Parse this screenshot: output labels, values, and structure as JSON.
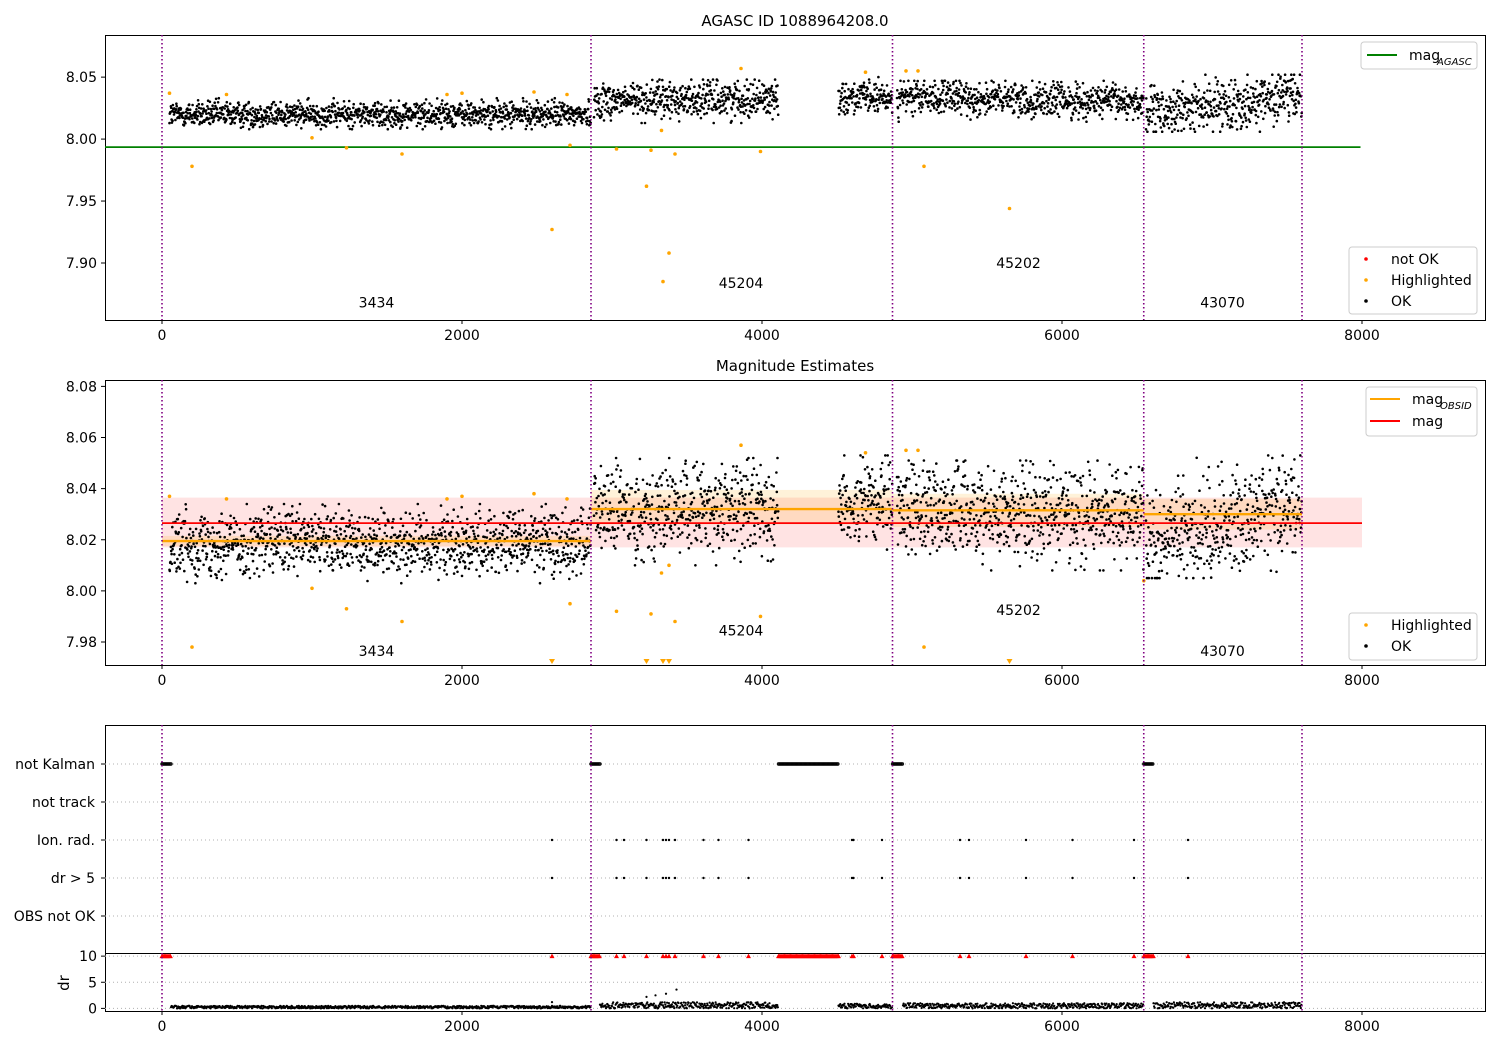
{
  "chart_data": [
    {
      "type": "scatter",
      "title": "AGASC ID 1088964208.0",
      "xlabel": "",
      "ylabel": "",
      "xlim": [
        -380,
        8820
      ],
      "ylim": [
        7.854,
        8.084
      ],
      "xticks": [
        0,
        2000,
        4000,
        6000,
        8000
      ],
      "yticks": [
        7.9,
        7.95,
        8.0,
        8.05
      ],
      "ytick_labels": [
        "7.90",
        "7.95",
        "8.00",
        "8.05"
      ],
      "grid": false,
      "obsid_boundaries": [
        0,
        2860,
        4870,
        6545,
        7600
      ],
      "obsid_labels": [
        {
          "text": "3434",
          "x": 1430,
          "y": 7.864
        },
        {
          "text": "45204",
          "x": 3860,
          "y": 7.88
        },
        {
          "text": "45202",
          "x": 5710,
          "y": 7.896
        },
        {
          "text": "43070",
          "x": 7070,
          "y": 7.864
        }
      ],
      "ok_segments": [
        {
          "x0": 50,
          "x1": 2860,
          "ymin": 8.008,
          "ymax": 8.033,
          "trend": [
            8.02,
            8.02
          ]
        },
        {
          "x0": 2880,
          "x1": 4110,
          "ymin": 8.013,
          "ymax": 8.048,
          "trend": [
            8.031,
            8.033
          ]
        },
        {
          "x0": 4510,
          "x1": 4870,
          "ymin": 8.02,
          "ymax": 8.05,
          "trend": [
            8.034,
            8.033
          ]
        },
        {
          "x0": 4900,
          "x1": 6545,
          "ymin": 8.014,
          "ymax": 8.047,
          "trend": [
            8.034,
            8.03
          ]
        },
        {
          "x0": 6560,
          "x1": 7600,
          "ymin": 8.006,
          "ymax": 8.052,
          "trend": [
            8.02,
            8.036
          ]
        }
      ],
      "highlighted_points": [
        [
          50,
          8.037
        ],
        [
          200,
          7.978
        ],
        [
          430,
          8.036
        ],
        [
          1000,
          8.001
        ],
        [
          1230,
          7.993
        ],
        [
          1600,
          7.988
        ],
        [
          1900,
          8.036
        ],
        [
          2000,
          8.037
        ],
        [
          2480,
          8.038
        ],
        [
          2600,
          7.927
        ],
        [
          2700,
          8.036
        ],
        [
          2720,
          7.995
        ],
        [
          3030,
          7.992
        ],
        [
          3230,
          7.962
        ],
        [
          3260,
          7.991
        ],
        [
          3330,
          8.007
        ],
        [
          3340,
          7.885
        ],
        [
          3380,
          7.908
        ],
        [
          3420,
          7.988
        ],
        [
          3860,
          8.057
        ],
        [
          3990,
          7.99
        ],
        [
          4690,
          8.054
        ],
        [
          4960,
          8.055
        ],
        [
          5040,
          8.055
        ],
        [
          5080,
          7.978
        ],
        [
          5650,
          7.944
        ]
      ],
      "not_ok_points": [],
      "reference_lines": [
        {
          "name": "mag_AGASC",
          "value": 7.9935,
          "x0": -380,
          "x1": 7990,
          "color": "#008000"
        }
      ],
      "legend_top": [
        {
          "label_main": "mag",
          "label_sub": "AGASC",
          "color": "#008000",
          "kind": "line"
        }
      ],
      "legend_bottom": [
        {
          "label": "not OK",
          "color": "#ff0000",
          "kind": "dot"
        },
        {
          "label": "Highlighted",
          "color": "#ffa500",
          "kind": "dot"
        },
        {
          "label": "OK",
          "color": "#000000",
          "kind": "dot"
        }
      ],
      "legend_placement": [
        "upper right",
        "lower right"
      ]
    },
    {
      "type": "scatter",
      "title": "Magnitude Estimates",
      "xlabel": "",
      "ylabel": "",
      "xlim": [
        -380,
        8820
      ],
      "ylim": [
        7.971,
        8.0825
      ],
      "xticks": [
        0,
        2000,
        4000,
        6000,
        8000
      ],
      "yticks": [
        7.98,
        8.0,
        8.02,
        8.04,
        8.06,
        8.08
      ],
      "ytick_labels": [
        "7.98",
        "8.00",
        "8.02",
        "8.04",
        "8.06",
        "8.08"
      ],
      "grid": false,
      "obsid_boundaries": [
        0,
        2860,
        4870,
        6545,
        7600
      ],
      "obsid_labels": [
        {
          "text": "3434",
          "x": 1430,
          "y": 7.9745
        },
        {
          "text": "45204",
          "x": 3860,
          "y": 7.9825
        },
        {
          "text": "45202",
          "x": 5710,
          "y": 7.9905
        },
        {
          "text": "43070",
          "x": 7070,
          "y": 7.9745
        }
      ],
      "ok_segments": [
        {
          "x0": 50,
          "x1": 2860,
          "ymin": 8.003,
          "ymax": 8.034,
          "trend": [
            8.019,
            8.019
          ]
        },
        {
          "x0": 2880,
          "x1": 4110,
          "ymin": 8.01,
          "ymax": 8.052,
          "trend": [
            8.031,
            8.033
          ]
        },
        {
          "x0": 4510,
          "x1": 4870,
          "ymin": 8.013,
          "ymax": 8.053,
          "trend": [
            8.034,
            8.033
          ]
        },
        {
          "x0": 4900,
          "x1": 6545,
          "ymin": 8.008,
          "ymax": 8.051,
          "trend": [
            8.033,
            8.029
          ]
        },
        {
          "x0": 6560,
          "x1": 7600,
          "ymin": 8.005,
          "ymax": 8.053,
          "trend": [
            8.018,
            8.035
          ]
        }
      ],
      "highlighted_points": [
        [
          50,
          8.037
        ],
        [
          200,
          7.978
        ],
        [
          430,
          8.036
        ],
        [
          1000,
          8.001
        ],
        [
          1230,
          7.993
        ],
        [
          1600,
          7.988
        ],
        [
          1900,
          8.036
        ],
        [
          2000,
          8.037
        ],
        [
          2480,
          8.038
        ],
        [
          2700,
          8.036
        ],
        [
          2720,
          7.995
        ],
        [
          3030,
          7.992
        ],
        [
          3260,
          7.991
        ],
        [
          3330,
          8.007
        ],
        [
          3420,
          7.988
        ],
        [
          3380,
          8.01
        ],
        [
          3860,
          8.057
        ],
        [
          3990,
          7.99
        ],
        [
          4690,
          8.054
        ],
        [
          4960,
          8.055
        ],
        [
          5040,
          8.055
        ],
        [
          5080,
          7.978
        ],
        [
          6545,
          8.004
        ]
      ],
      "clipped_points_x": [
        2600,
        3230,
        3340,
        3380,
        5650
      ],
      "obsid_mags": [
        {
          "x0": 0,
          "x1": 2860,
          "value": 8.0195,
          "lo": 8.0175,
          "hi": 8.0215
        },
        {
          "x0": 2860,
          "x1": 4870,
          "value": 8.032,
          "lo": 8.026,
          "hi": 8.0395
        },
        {
          "x0": 4870,
          "x1": 6545,
          "value": 8.0315,
          "lo": 8.025,
          "hi": 8.038
        },
        {
          "x0": 6545,
          "x1": 7600,
          "value": 8.03,
          "lo": 8.024,
          "hi": 8.036
        }
      ],
      "mean_mag": {
        "value": 8.0265,
        "lo": 8.017,
        "hi": 8.0365,
        "x0": 0,
        "x1": 8000
      },
      "legend_top": [
        {
          "label_main": "mag",
          "label_sub": "OBSID",
          "color": "#ffa500",
          "kind": "line"
        },
        {
          "label_main": "mag",
          "label_sub": "",
          "color": "#ff0000",
          "kind": "line"
        }
      ],
      "legend_bottom": [
        {
          "label": "Highlighted",
          "color": "#ffa500",
          "kind": "dot"
        },
        {
          "label": "OK",
          "color": "#000000",
          "kind": "dot"
        }
      ],
      "legend_placement": [
        "upper right",
        "lower right"
      ]
    },
    {
      "type": "scatter",
      "title": "",
      "xlabel": "",
      "ylabel": "",
      "xlim": [
        -380,
        8820
      ],
      "xticks": [
        0,
        2000,
        4000,
        6000,
        8000
      ],
      "grid": true,
      "obsid_boundaries": [
        0,
        2860,
        4870,
        6545,
        7600
      ],
      "flag_rows": [
        {
          "label": "not Kalman",
          "ranges": [
            [
              0,
              60
            ],
            [
              2860,
              2920
            ],
            [
              4110,
              4510
            ],
            [
              4870,
              4940
            ],
            [
              6545,
              6610
            ]
          ],
          "points": []
        },
        {
          "label": "not track",
          "ranges": [],
          "points": []
        },
        {
          "label": "Ion. rad.",
          "ranges": [],
          "points": [
            2600,
            3030,
            3080,
            3230,
            3340,
            3360,
            3380,
            3420,
            3610,
            3710,
            3910,
            4600,
            4610,
            4800,
            5320,
            5380,
            5760,
            6070,
            6480,
            6840
          ]
        },
        {
          "label": "dr > 5",
          "ranges": [],
          "points": [
            2600,
            3030,
            3080,
            3230,
            3340,
            3360,
            3380,
            3420,
            3610,
            3710,
            3910,
            4600,
            4610,
            4800,
            5320,
            5380,
            5760,
            6070,
            6480,
            6840
          ]
        },
        {
          "label": "OBS not OK",
          "ranges": [],
          "points": []
        }
      ]
    },
    {
      "type": "scatter",
      "title": "",
      "xlabel": "",
      "ylabel": "dr",
      "xlim": [
        -380,
        8820
      ],
      "ylim": [
        -0.5,
        10.6
      ],
      "xticks": [
        0,
        2000,
        4000,
        6000,
        8000
      ],
      "yticks": [
        0,
        5,
        10
      ],
      "ytick_labels": [
        "0",
        "5",
        "10"
      ],
      "grid": true,
      "obsid_boundaries": [
        0,
        2860,
        4870,
        6545,
        7600
      ],
      "ok_segments": [
        {
          "x0": 60,
          "x1": 2860,
          "ymin": 0.0,
          "ymax": 0.5
        },
        {
          "x0": 2920,
          "x1": 4110,
          "ymin": 0.0,
          "ymax": 1.2
        },
        {
          "x0": 4510,
          "x1": 4870,
          "ymin": 0.0,
          "ymax": 0.9
        },
        {
          "x0": 4940,
          "x1": 6545,
          "ymin": 0.0,
          "ymax": 1.0
        },
        {
          "x0": 6610,
          "x1": 7600,
          "ymin": 0.0,
          "ymax": 1.2
        }
      ],
      "outlier_points": [
        [
          3230,
          2.2
        ],
        [
          3290,
          2.5
        ],
        [
          3360,
          2.8
        ],
        [
          3430,
          3.6
        ],
        [
          2600,
          1.2
        ]
      ],
      "capped_points": [
        2600,
        3030,
        3080,
        3230,
        3340,
        3360,
        3380,
        3420,
        3610,
        3710,
        3910,
        4600,
        4610,
        4800,
        5320,
        5380,
        5760,
        6070,
        6480,
        6840
      ],
      "capped_ranges": [
        [
          0,
          60
        ],
        [
          2860,
          2920
        ],
        [
          4110,
          4510
        ],
        [
          4870,
          4940
        ],
        [
          6545,
          6610
        ]
      ],
      "capped_value": 10
    }
  ]
}
